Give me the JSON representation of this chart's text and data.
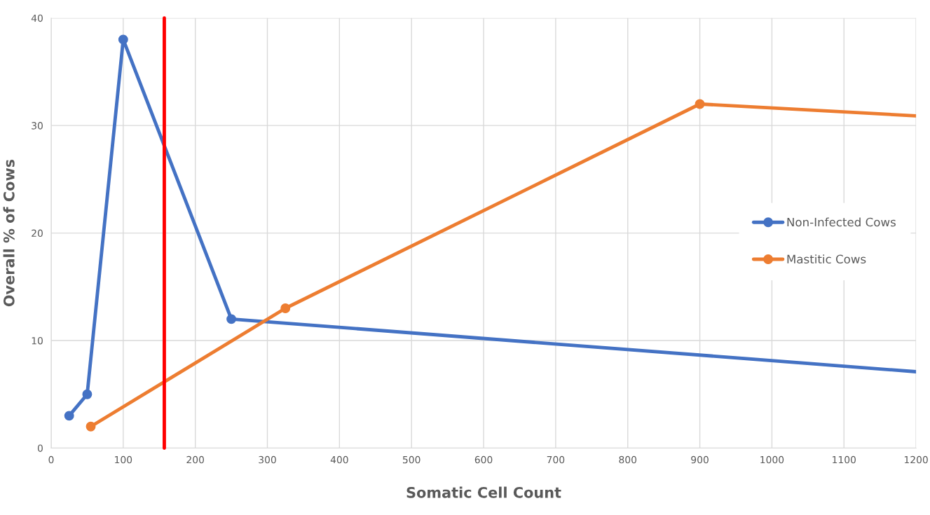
{
  "chart_data": {
    "type": "line",
    "xlabel": "Somatic Cell Count",
    "ylabel": "Overall % of Cows",
    "xlim": [
      0,
      1200
    ],
    "xticks": [
      0,
      100,
      200,
      300,
      400,
      500,
      600,
      700,
      800,
      900,
      1000,
      1100,
      1200
    ],
    "ylim": [
      0,
      40
    ],
    "yticks": [
      0,
      10,
      20,
      30,
      40
    ],
    "grid": true,
    "legend": "right",
    "marker": "circle",
    "series": [
      {
        "name": "Non-Infected Cows",
        "color": "#4472c4",
        "x": [
          25,
          50,
          100,
          250,
          1200
        ],
        "values": [
          3,
          5,
          38,
          12,
          7.1
        ]
      },
      {
        "name": "Mastitic Cows",
        "color": "#ed7d31",
        "x": [
          55,
          325,
          900,
          1200
        ],
        "values": [
          2,
          13,
          32,
          30.9
        ]
      }
    ],
    "ref_lines": [
      {
        "axis": "x",
        "value": 157,
        "color": "#ff0000"
      }
    ]
  }
}
